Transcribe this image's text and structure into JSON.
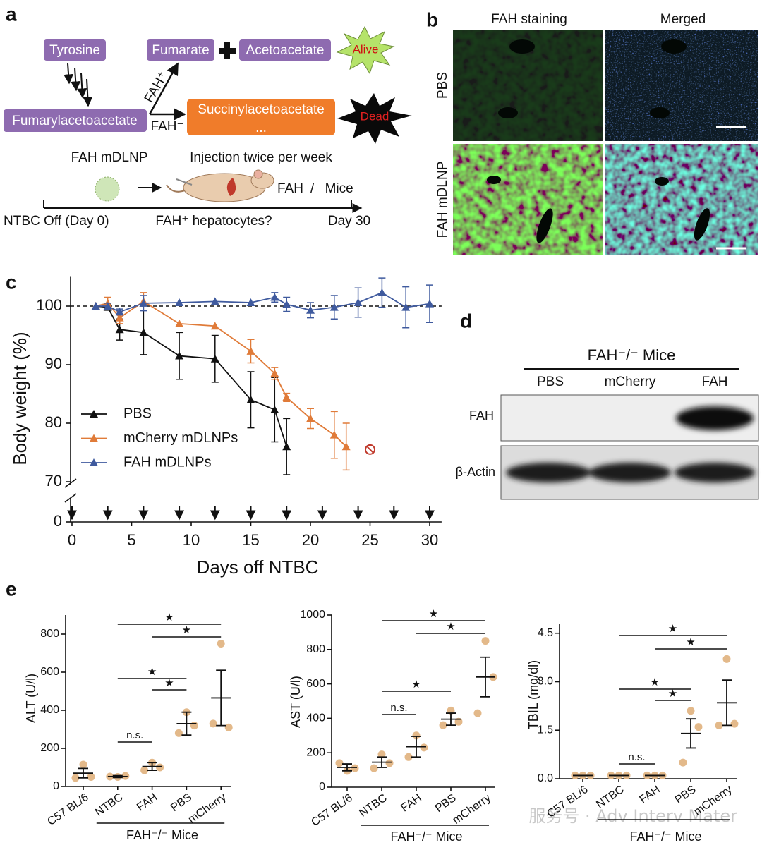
{
  "panel_labels": [
    "a",
    "b",
    "c",
    "d",
    "e"
  ],
  "diagram": {
    "tyrosine": "Tyrosine",
    "fumarylacetoacetate": "Fumarylacetoacetate",
    "fumarate": "Fumarate",
    "acetoacetate": "Acetoacetate",
    "alive": "Alive",
    "fah_plus": "FAH⁺",
    "fah_minus": "FAH⁻",
    "succinylacetoacetate": "Succinylacetoacetate",
    "ellipsis": "...",
    "dead": "Dead",
    "nanoparticle": "FAH mDLNP",
    "schedule": "Injection twice per week",
    "mice": "FAH⁻/⁻ Mice",
    "start": "NTBC Off (Day 0)",
    "question": "FAH⁺ hepatocytes?",
    "end": "Day 30"
  },
  "staining": {
    "columns": [
      "FAH staining",
      "Merged"
    ],
    "rows": [
      "PBS",
      "FAH mDLNP"
    ]
  },
  "blot": {
    "group": "FAH⁻/⁻ Mice",
    "lanes": [
      "PBS",
      "mCherry",
      "FAH"
    ],
    "rows": [
      "FAH",
      "β-Actin"
    ]
  },
  "chart_data": [
    {
      "type": "line",
      "xlabel": "Days off NTBC",
      "ylabel": "Body weight (%)",
      "xlim": [
        0,
        31
      ],
      "xticks": [
        0,
        5,
        10,
        15,
        20,
        25,
        30
      ],
      "ylim": [
        0,
        105
      ],
      "ybreak": [
        0,
        70
      ],
      "yticks": [
        0,
        70,
        80,
        90,
        100
      ],
      "reference_line": 100,
      "injection_days": [
        0,
        3,
        6,
        9,
        12,
        15,
        18,
        21,
        24,
        27,
        30
      ],
      "legend": "lower left",
      "end_marker": {
        "x": 25,
        "y": 75.5,
        "color": "#c0392b"
      },
      "series": [
        {
          "name": "PBS",
          "color": "#111111",
          "x": [
            2,
            3,
            4,
            6,
            9,
            12,
            15,
            17,
            18
          ],
          "values": [
            100,
            99.8,
            96,
            95.5,
            91.5,
            91,
            84,
            82.3,
            76
          ],
          "errors": [
            0,
            0.5,
            1.8,
            3.8,
            4,
            4,
            4.8,
            5.5,
            4.8
          ]
        },
        {
          "name": "mCherry mDLNPs",
          "color": "#e07b39",
          "x": [
            2,
            3,
            4,
            6,
            9,
            12,
            15,
            17,
            18,
            20,
            22,
            23
          ],
          "values": [
            100,
            100.5,
            98,
            100.8,
            97,
            96.6,
            92.3,
            88.5,
            84.4,
            80.8,
            78,
            76
          ],
          "errors": [
            0,
            1,
            1,
            1.5,
            0,
            0,
            2,
            1,
            0.7,
            1.7,
            4,
            4
          ]
        },
        {
          "name": "FAH mDLNPs",
          "color": "#3f5a9e",
          "x": [
            2,
            3,
            4,
            6,
            9,
            12,
            15,
            17,
            18,
            20,
            22,
            24,
            26,
            28,
            30
          ],
          "values": [
            100,
            100,
            99,
            100.5,
            100.6,
            100.8,
            100.6,
            101.5,
            100.3,
            99.3,
            99.8,
            100.6,
            102.3,
            99.8,
            100.4
          ],
          "errors": [
            0,
            0.5,
            0.5,
            1.3,
            0,
            0,
            0,
            0.8,
            1.2,
            1.3,
            2,
            2.5,
            2.5,
            3.5,
            3.2
          ]
        }
      ]
    },
    {
      "type": "dot",
      "ylabel": "ALT (U/l)",
      "categories": [
        "C57 BL/6",
        "NTBC",
        "FAH",
        "PBS",
        "mCherry"
      ],
      "group_label": "FAH⁻/⁻ Mice",
      "group_span": [
        1,
        4
      ],
      "ylim": [
        0,
        900
      ],
      "yticks": [
        0,
        200,
        400,
        600,
        800
      ],
      "color": "#e3b98a",
      "points": [
        [
          45,
          115,
          50
        ],
        [
          52,
          50,
          55
        ],
        [
          85,
          125,
          100
        ],
        [
          280,
          390,
          320
        ],
        [
          330,
          750,
          310
        ]
      ],
      "means": [
        70,
        52,
        105,
        330,
        465
      ],
      "errors": [
        25,
        5,
        20,
        60,
        145
      ],
      "brackets": [
        {
          "from": 1,
          "to": 4,
          "label": "★"
        },
        {
          "from": 2,
          "to": 4,
          "label": "★"
        },
        {
          "from": 1,
          "to": 3,
          "label": "★"
        },
        {
          "from": 2,
          "to": 3,
          "label": "★"
        },
        {
          "from": 1,
          "to": 2,
          "label": "n.s."
        }
      ]
    },
    {
      "type": "dot",
      "ylabel": "AST (U/l)",
      "categories": [
        "C57 BL/6",
        "NTBC",
        "FAH",
        "PBS",
        "mCherry"
      ],
      "group_label": "FAH⁻/⁻ Mice",
      "group_span": [
        1,
        4
      ],
      "ylim": [
        0,
        1000
      ],
      "yticks": [
        0,
        200,
        400,
        600,
        800,
        1000
      ],
      "color": "#e3b98a",
      "points": [
        [
          140,
          95,
          110
        ],
        [
          110,
          190,
          140
        ],
        [
          175,
          300,
          230
        ],
        [
          360,
          445,
          380
        ],
        [
          430,
          850,
          640
        ]
      ],
      "means": [
        115,
        145,
        235,
        395,
        640
      ],
      "errors": [
        20,
        30,
        60,
        35,
        115
      ],
      "brackets": [
        {
          "from": 1,
          "to": 4,
          "label": "★"
        },
        {
          "from": 2,
          "to": 4,
          "label": "★"
        },
        {
          "from": 1,
          "to": 3,
          "label": "★"
        },
        {
          "from": 1,
          "to": 2,
          "label": "n.s."
        }
      ]
    },
    {
      "type": "dot",
      "ylabel": "TBIL (mg/dl)",
      "categories": [
        "C57 BL/6",
        "NTBC",
        "FAH",
        "PBS",
        "mCherry"
      ],
      "group_label": "FAH⁻/⁻ Mice",
      "group_span": [
        1,
        4
      ],
      "ylim": [
        0,
        4.8
      ],
      "yticks": [
        {
          "value": 0,
          "label": "0.0"
        },
        {
          "value": 1.5,
          "label": "1.5"
        },
        {
          "value": 3,
          "label": "3.0"
        },
        {
          "value": 4.5,
          "label": "4.5"
        }
      ],
      "color": "#e3b98a",
      "points": [
        [
          0.1,
          0.1,
          0.1
        ],
        [
          0.1,
          0.1,
          0.1
        ],
        [
          0.1,
          0.1,
          0.1
        ],
        [
          0.5,
          2.1,
          1.6
        ],
        [
          1.65,
          3.7,
          1.7
        ]
      ],
      "means": [
        0.1,
        0.1,
        0.1,
        1.4,
        2.35
      ],
      "errors": [
        0,
        0,
        0,
        0.45,
        0.7
      ],
      "brackets": [
        {
          "from": 1,
          "to": 4,
          "label": "★"
        },
        {
          "from": 2,
          "to": 4,
          "label": "★"
        },
        {
          "from": 1,
          "to": 3,
          "label": "★"
        },
        {
          "from": 2,
          "to": 3,
          "label": "★"
        },
        {
          "from": 1,
          "to": 2,
          "label": "n.s."
        }
      ]
    }
  ],
  "watermark": "服务号 · Adv Interv Mater"
}
